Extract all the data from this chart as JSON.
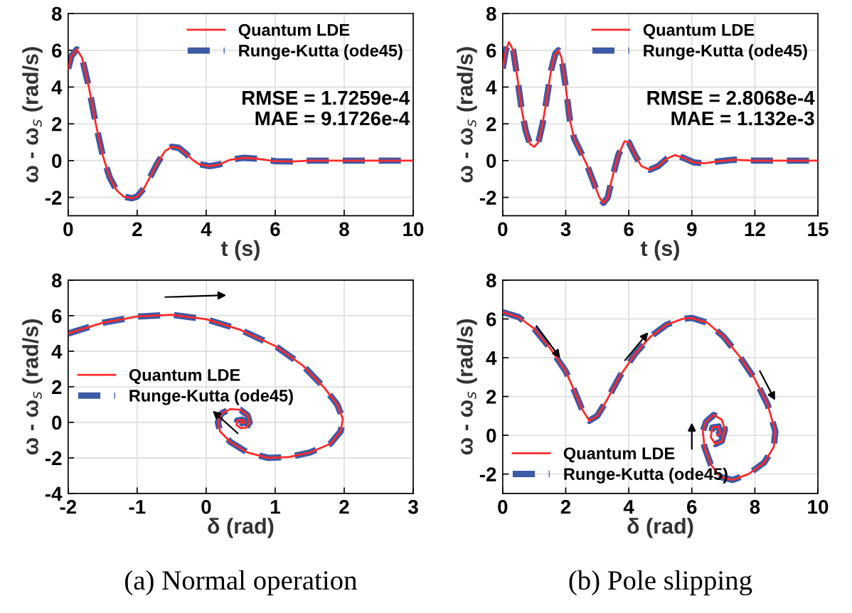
{
  "chart_data": [
    {
      "type": "line",
      "xlabel": "t (s)",
      "ylabel": "ω - ω$_{s}$ (rad/s)",
      "xlim": [
        0,
        10
      ],
      "xticks": [
        0,
        2,
        4,
        6,
        8,
        10
      ],
      "ylim": [
        -3,
        8
      ],
      "yticks": [
        -2,
        0,
        2,
        4,
        6,
        8
      ],
      "grid": true,
      "legend": "top right",
      "annotations": [
        "RMSE = 1.7259e-4\nMAE = 9.1726e-4"
      ],
      "x": [
        0,
        0.1,
        0.25,
        0.4,
        0.6,
        0.8,
        1.0,
        1.2,
        1.4,
        1.6,
        1.85,
        2.0,
        2.2,
        2.4,
        2.6,
        2.8,
        3.0,
        3.2,
        3.4,
        3.6,
        3.8,
        4.1,
        4.4,
        4.7,
        5.1,
        5.5,
        6.0,
        6.5,
        7,
        8,
        9,
        10
      ],
      "series": [
        {
          "name": "Quantum LDE",
          "color": "#ff2a2a",
          "line_style": "solid",
          "values": [
            5.0,
            5.7,
            6.05,
            5.6,
            4.0,
            2.0,
            0.3,
            -0.9,
            -1.6,
            -1.95,
            -2.05,
            -1.95,
            -1.5,
            -0.8,
            -0.1,
            0.5,
            0.75,
            0.7,
            0.4,
            0.05,
            -0.2,
            -0.3,
            -0.2,
            0.05,
            0.15,
            0.1,
            -0.03,
            -0.05,
            0,
            0,
            0,
            0
          ]
        },
        {
          "name": "Runge-Kutta (ode45)",
          "color": "#3d5aa6",
          "line_style": "dashed",
          "values": [
            5.0,
            5.7,
            6.05,
            5.6,
            4.0,
            2.0,
            0.3,
            -0.9,
            -1.6,
            -1.95,
            -2.05,
            -1.95,
            -1.5,
            -0.8,
            -0.1,
            0.5,
            0.75,
            0.7,
            0.4,
            0.05,
            -0.2,
            -0.3,
            -0.2,
            0.05,
            0.15,
            0.1,
            -0.03,
            -0.05,
            0,
            0,
            0,
            0
          ]
        }
      ]
    },
    {
      "type": "line",
      "xlabel": "t (s)",
      "ylabel": "ω - ω$_{s}$ (rad/s)",
      "xlim": [
        0,
        15
      ],
      "xticks": [
        0,
        3,
        6,
        9,
        12,
        15
      ],
      "ylim": [
        -3,
        8
      ],
      "yticks": [
        -2,
        0,
        2,
        4,
        6,
        8
      ],
      "grid": true,
      "legend": "top right",
      "annotations": [
        "RMSE = 2.8068e-4\nMAE = 1.132e-3"
      ],
      "x": [
        0,
        0.15,
        0.3,
        0.5,
        0.7,
        0.9,
        1.1,
        1.3,
        1.5,
        1.7,
        1.9,
        2.1,
        2.3,
        2.5,
        2.65,
        2.8,
        3.0,
        3.2,
        3.4,
        3.7,
        4.0,
        4.3,
        4.6,
        4.8,
        5.0,
        5.2,
        5.5,
        5.8,
        6.0,
        6.3,
        6.6,
        7.0,
        7.4,
        7.8,
        8.2,
        8.6,
        9.1,
        9.6,
        10.2,
        11,
        12,
        13,
        15
      ],
      "series": [
        {
          "name": "Quantum LDE",
          "color": "#ff2a2a",
          "line_style": "solid",
          "values": [
            5.0,
            6.0,
            6.45,
            6.0,
            4.5,
            2.8,
            1.6,
            0.9,
            0.75,
            1.0,
            2.0,
            3.4,
            4.9,
            5.8,
            6.0,
            5.6,
            4.0,
            2.2,
            1.2,
            0.5,
            -0.2,
            -1.1,
            -2.0,
            -2.3,
            -2.0,
            -1.0,
            0.3,
            1.05,
            1.0,
            0.3,
            -0.3,
            -0.5,
            -0.3,
            0.1,
            0.3,
            0.15,
            -0.1,
            -0.15,
            -0.05,
            0.05,
            0,
            0,
            0
          ]
        },
        {
          "name": "Runge-Kutta (ode45)",
          "color": "#3d5aa6",
          "line_style": "dashed",
          "values": [
            5.0,
            6.0,
            6.45,
            6.0,
            4.5,
            2.8,
            1.6,
            0.9,
            0.75,
            1.0,
            2.0,
            3.4,
            4.9,
            5.8,
            6.0,
            5.6,
            4.0,
            2.2,
            1.2,
            0.5,
            -0.2,
            -1.1,
            -2.0,
            -2.3,
            -2.0,
            -1.0,
            0.3,
            1.05,
            1.0,
            0.3,
            -0.3,
            -0.5,
            -0.3,
            0.1,
            0.3,
            0.15,
            -0.1,
            -0.15,
            -0.05,
            0.05,
            0,
            0,
            0
          ]
        }
      ]
    },
    {
      "type": "line",
      "title": "(a) Normal operation",
      "xlabel": "δ (rad)",
      "ylabel": "ω - ω$_{s}$ (rad/s)",
      "xlim": [
        -2,
        3
      ],
      "xticks": [
        -2,
        -1,
        0,
        1,
        2,
        3
      ],
      "ylim": [
        -4,
        8
      ],
      "yticks": [
        -4,
        -2,
        0,
        2,
        4,
        6,
        8
      ],
      "grid": true,
      "legend": "left",
      "x": [
        -2,
        -1.5,
        -1,
        -0.5,
        0,
        0.5,
        1.0,
        1.4,
        1.7,
        1.9,
        1.98,
        1.95,
        1.8,
        1.5,
        1.2,
        0.9,
        0.6,
        0.35,
        0.2,
        0.17,
        0.22,
        0.35,
        0.5,
        0.6,
        0.63,
        0.58,
        0.5,
        0.44,
        0.45,
        0.52,
        0.56,
        0.52,
        0.5
      ],
      "series": [
        {
          "name": "Quantum LDE",
          "color": "#ff2a2a",
          "line_style": "solid",
          "values": [
            5.0,
            5.6,
            5.95,
            6.05,
            5.8,
            5.2,
            4.3,
            3.2,
            2.0,
            1.0,
            0.2,
            -0.5,
            -1.2,
            -1.7,
            -1.95,
            -2.0,
            -1.7,
            -1.1,
            -0.5,
            0.0,
            0.5,
            0.75,
            0.7,
            0.4,
            0.0,
            -0.3,
            -0.33,
            -0.15,
            0.1,
            0.15,
            0.0,
            -0.05,
            0
          ]
        },
        {
          "name": "Runge-Kutta (ode45)",
          "color": "#3d5aa6",
          "line_style": "dashed",
          "values": [
            5.0,
            5.6,
            5.95,
            6.05,
            5.8,
            5.2,
            4.3,
            3.2,
            2.0,
            1.0,
            0.2,
            -0.5,
            -1.2,
            -1.7,
            -1.95,
            -2.0,
            -1.7,
            -1.1,
            -0.5,
            0.0,
            0.5,
            0.75,
            0.7,
            0.4,
            0.0,
            -0.3,
            -0.33,
            -0.15,
            0.1,
            0.15,
            0.0,
            -0.05,
            0
          ]
        }
      ]
    },
    {
      "type": "line",
      "title": "(b) Pole slipping",
      "xlabel": "δ (rad)",
      "ylabel": "ω - ω$_{s}$ (rad/s)",
      "xlim": [
        0,
        10
      ],
      "xticks": [
        0,
        2,
        4,
        6,
        8,
        10
      ],
      "ylim": [
        -3,
        8
      ],
      "yticks": [
        -2,
        0,
        2,
        4,
        6,
        8
      ],
      "grid": true,
      "legend": "bottom left",
      "x": [
        0,
        0.5,
        1,
        1.5,
        2,
        2.3,
        2.5,
        2.75,
        3,
        3.3,
        3.7,
        4.2,
        4.7,
        5.2,
        5.7,
        6.0,
        6.5,
        7,
        7.5,
        8,
        8.4,
        8.65,
        8.6,
        8.3,
        7.8,
        7.3,
        6.9,
        6.6,
        6.4,
        6.35,
        6.45,
        6.7,
        6.95,
        7.05,
        6.95,
        6.75,
        6.6,
        6.65,
        6.85,
        6.9,
        6.8
      ],
      "series": [
        {
          "name": "Quantum LDE",
          "color": "#ff2a2a",
          "line_style": "solid",
          "values": [
            6.35,
            6.1,
            5.5,
            4.5,
            3.3,
            2.2,
            1.4,
            0.75,
            1.0,
            1.8,
            3.0,
            4.2,
            5.1,
            5.7,
            6.0,
            6.05,
            5.8,
            5.1,
            4.1,
            2.9,
            1.6,
            0.2,
            -0.6,
            -1.4,
            -2.0,
            -2.3,
            -2.15,
            -1.5,
            -0.6,
            0.2,
            0.7,
            1.05,
            0.8,
            0.3,
            -0.3,
            -0.45,
            -0.1,
            0.4,
            0.45,
            0.1,
            0
          ]
        },
        {
          "name": "Runge-Kutta (ode45)",
          "color": "#3d5aa6",
          "line_style": "dashed",
          "values": [
            6.35,
            6.1,
            5.5,
            4.5,
            3.3,
            2.2,
            1.4,
            0.75,
            1.0,
            1.8,
            3.0,
            4.2,
            5.1,
            5.7,
            6.0,
            6.05,
            5.8,
            5.1,
            4.1,
            2.9,
            1.6,
            0.2,
            -0.6,
            -1.4,
            -2.0,
            -2.3,
            -2.15,
            -1.5,
            -0.6,
            0.2,
            0.7,
            1.05,
            0.8,
            0.3,
            -0.3,
            -0.45,
            -0.1,
            0.4,
            0.45,
            0.1,
            0
          ]
        }
      ]
    }
  ]
}
